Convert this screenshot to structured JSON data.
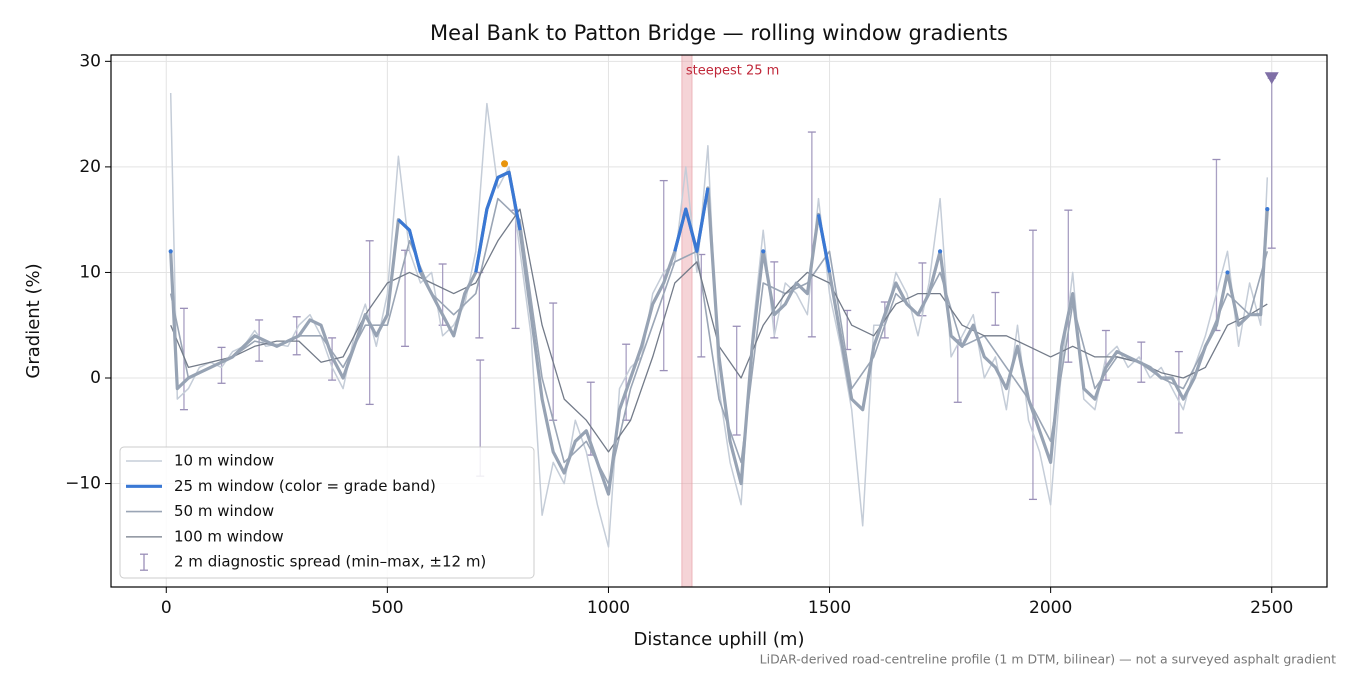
{
  "chart_data": {
    "type": "line",
    "title": "Meal Bank to Patton Bridge — rolling window gradients",
    "x_label": "Distance uphill (m)",
    "y_label": "Gradient (%)",
    "footnote": "LiDAR-derived road-centreline profile (1 m DTM, bilinear) — not a surveyed asphalt gradient",
    "xlim": [
      -125,
      2625
    ],
    "ylim": [
      -19.8,
      30.6
    ],
    "xticks": [
      0,
      500,
      1000,
      1500,
      2000,
      2500
    ],
    "yticks": [
      {
        "value": -10,
        "label": "−10"
      },
      0,
      10,
      20,
      30
    ],
    "grid": true,
    "legend": "lower left",
    "series": [
      {
        "name": "10 m window",
        "color": "#c5cdd8",
        "width": 1.5,
        "x": [
          10,
          25,
          50,
          75,
          100,
          125,
          150,
          175,
          200,
          225,
          250,
          275,
          300,
          325,
          350,
          375,
          400,
          425,
          450,
          475,
          500,
          525,
          550,
          575,
          600,
          625,
          650,
          675,
          700,
          725,
          750,
          775,
          800,
          825,
          850,
          875,
          900,
          925,
          950,
          975,
          1000,
          1025,
          1050,
          1075,
          1100,
          1125,
          1150,
          1175,
          1200,
          1225,
          1250,
          1275,
          1300,
          1325,
          1350,
          1375,
          1400,
          1425,
          1450,
          1475,
          1500,
          1525,
          1550,
          1575,
          1600,
          1625,
          1650,
          1675,
          1700,
          1725,
          1750,
          1775,
          1800,
          1825,
          1850,
          1875,
          1900,
          1925,
          1950,
          1975,
          2000,
          2025,
          2050,
          2075,
          2100,
          2125,
          2150,
          2175,
          2200,
          2225,
          2250,
          2275,
          2300,
          2325,
          2350,
          2375,
          2400,
          2425,
          2450,
          2475,
          2490
        ],
        "values": [
          27,
          -2,
          -1,
          1,
          1.5,
          1,
          2.5,
          3,
          4.5,
          3,
          3.2,
          3,
          5,
          6,
          4,
          1,
          -1,
          4,
          7,
          3,
          8,
          21,
          12,
          9,
          10,
          4,
          5,
          7,
          12,
          26,
          18,
          20,
          12,
          4,
          -13,
          -8,
          -10,
          -4,
          -7,
          -12,
          -16,
          -1,
          1,
          2,
          8,
          10,
          11,
          20,
          10,
          22,
          -1,
          -8,
          -12,
          4,
          14,
          4,
          9,
          8,
          6,
          17,
          8,
          3,
          -3,
          -14,
          5,
          5,
          10,
          8,
          4,
          9,
          17,
          2,
          4,
          6,
          0,
          2,
          -3,
          5,
          -4,
          -7,
          -12,
          1,
          10,
          -2,
          -3,
          2,
          3,
          1,
          2,
          0,
          1,
          -1,
          -3,
          1,
          4,
          8,
          12,
          3,
          9,
          5,
          19
        ]
      },
      {
        "name": "25 m window (color = grade band)",
        "color": "#97a3b4",
        "width": 3.2,
        "grade_band": {
          "threshold": 10,
          "color": "#3a78d4"
        },
        "x": [
          10,
          25,
          50,
          75,
          100,
          125,
          150,
          175,
          200,
          225,
          250,
          275,
          300,
          325,
          350,
          375,
          400,
          425,
          450,
          475,
          500,
          525,
          550,
          575,
          600,
          625,
          650,
          675,
          700,
          725,
          750,
          775,
          800,
          825,
          850,
          875,
          900,
          925,
          950,
          975,
          1000,
          1025,
          1050,
          1075,
          1100,
          1125,
          1150,
          1175,
          1200,
          1225,
          1250,
          1275,
          1300,
          1325,
          1350,
          1375,
          1400,
          1425,
          1450,
          1475,
          1500,
          1525,
          1550,
          1575,
          1600,
          1625,
          1650,
          1675,
          1700,
          1725,
          1750,
          1775,
          1800,
          1825,
          1850,
          1875,
          1900,
          1925,
          1950,
          1975,
          2000,
          2025,
          2050,
          2075,
          2100,
          2125,
          2150,
          2175,
          2200,
          2225,
          2250,
          2275,
          2300,
          2325,
          2350,
          2375,
          2400,
          2425,
          2450,
          2475,
          2490
        ],
        "values": [
          12,
          -1,
          0,
          0.5,
          1,
          1.5,
          2,
          3,
          4,
          3.5,
          3,
          3.5,
          4,
          5.5,
          5,
          2,
          0,
          3,
          6,
          4,
          6,
          15,
          14,
          10,
          8,
          6,
          4,
          8,
          10,
          16,
          19,
          19.5,
          14,
          6,
          -2,
          -7,
          -9,
          -6,
          -5,
          -8,
          -11,
          -3,
          0,
          3,
          7,
          9,
          12,
          16,
          12,
          18,
          2,
          -6,
          -10,
          3,
          12,
          6,
          7,
          9,
          8,
          15.5,
          10,
          4,
          -2,
          -3,
          3,
          6,
          9,
          7,
          6,
          8,
          12,
          4,
          3,
          5,
          2,
          1,
          -1,
          3,
          -2,
          -5,
          -8,
          3,
          8,
          -1,
          -2,
          1,
          2.5,
          2,
          1.5,
          1,
          0,
          0,
          -2,
          0,
          3,
          5,
          10,
          5,
          6,
          6,
          16
        ]
      },
      {
        "name": "50 m window",
        "color": "#9aa5b5",
        "width": 1.6,
        "x": [
          10,
          50,
          100,
          150,
          200,
          250,
          300,
          350,
          400,
          450,
          500,
          550,
          600,
          650,
          700,
          750,
          800,
          850,
          900,
          950,
          1000,
          1050,
          1100,
          1150,
          1200,
          1250,
          1300,
          1350,
          1400,
          1450,
          1500,
          1550,
          1600,
          1650,
          1700,
          1750,
          1800,
          1850,
          1900,
          1950,
          2000,
          2050,
          2100,
          2150,
          2200,
          2250,
          2300,
          2350,
          2400,
          2450,
          2490
        ],
        "values": [
          8,
          0,
          1,
          2,
          3.5,
          3,
          4,
          4,
          1,
          5,
          5,
          13,
          8,
          6,
          8,
          17,
          15,
          0,
          -8,
          -6,
          -10,
          -1,
          5,
          11,
          12,
          -2,
          -8,
          9,
          8,
          9,
          12,
          -1,
          2,
          8,
          6,
          10,
          3,
          4,
          1,
          -2,
          -6,
          7,
          -1,
          2,
          1.5,
          0,
          -1,
          3,
          8,
          6,
          12
        ]
      },
      {
        "name": "100 m window",
        "color": "#737b89",
        "width": 1.3,
        "x": [
          10,
          50,
          100,
          150,
          200,
          250,
          300,
          350,
          400,
          450,
          500,
          550,
          600,
          650,
          700,
          750,
          800,
          850,
          900,
          950,
          1000,
          1050,
          1100,
          1150,
          1200,
          1250,
          1300,
          1350,
          1400,
          1450,
          1500,
          1550,
          1600,
          1650,
          1700,
          1750,
          1800,
          1850,
          1900,
          1950,
          2000,
          2050,
          2100,
          2150,
          2200,
          2250,
          2300,
          2350,
          2400,
          2450,
          2490
        ],
        "values": [
          5,
          1,
          1.5,
          2,
          3,
          3.5,
          3.5,
          1.5,
          2,
          6,
          9,
          10,
          9,
          8,
          9,
          13,
          16,
          5,
          -2,
          -4,
          -7,
          -4,
          2,
          9,
          11,
          3,
          0,
          5,
          8,
          10,
          9,
          5,
          4,
          7,
          8,
          8,
          5,
          4,
          4,
          3,
          2,
          3,
          2,
          2,
          1.5,
          0.5,
          0,
          1,
          5,
          6,
          7
        ]
      }
    ],
    "spread": {
      "name": "2 m diagnostic spread (min–max, ±12 m)",
      "color": "#9a8fb8",
      "x": [
        40,
        125,
        210,
        295,
        375,
        460,
        540,
        625,
        708,
        710,
        790,
        875,
        960,
        1040,
        1125,
        1210,
        1290,
        1375,
        1460,
        1540,
        1625,
        1710,
        1790,
        1875,
        1960,
        2040,
        2125,
        2205,
        2290,
        2375,
        2500
      ],
      "low": [
        -3,
        -0.5,
        1.6,
        2.2,
        -0.2,
        -2.5,
        3,
        5,
        3.8,
        -9.3,
        4.7,
        -4,
        -7.3,
        -4,
        0.7,
        2,
        -5.4,
        3.8,
        3.9,
        2.7,
        3.8,
        5.9,
        -2.3,
        5,
        -11.5,
        1.5,
        -0.2,
        -0.4,
        -5.2,
        4.5,
        12.3
      ],
      "high": [
        6.6,
        2.9,
        5.5,
        5.8,
        3.8,
        13,
        12.1,
        10.8,
        10,
        1.7,
        15.9,
        7.1,
        -0.4,
        3.2,
        18.7,
        11.7,
        4.9,
        11,
        23.3,
        6.4,
        7.2,
        10.9,
        3.6,
        8.1,
        14,
        15.9,
        4.5,
        3.4,
        2.5,
        20.7,
        28.4
      ]
    },
    "clip_marker": {
      "x": 2500,
      "y": 28.4,
      "color": "#7f6fa6"
    },
    "peak_marker": {
      "x": 765,
      "y": 20.3,
      "color": "#e8940c"
    },
    "steepest_span": {
      "label": "steepest 25 m",
      "x0": 1166,
      "x1": 1189,
      "color": "#e8a0a6",
      "label_color": "#c0283a"
    }
  }
}
